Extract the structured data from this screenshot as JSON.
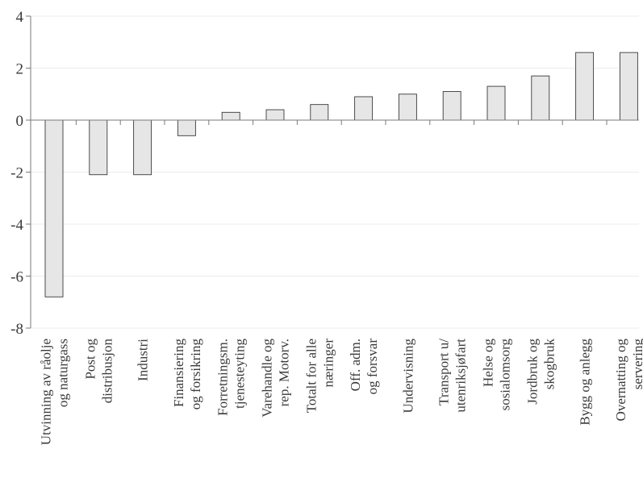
{
  "chart_data": {
    "type": "bar",
    "title": "",
    "xlabel": "",
    "ylabel": "",
    "ylim": [
      -8,
      4
    ],
    "yticks": [
      4,
      2,
      0,
      -2,
      -4,
      -6,
      -8
    ],
    "grid": true,
    "categories": [
      [
        "Utvinning av råolje",
        "og naturgass"
      ],
      [
        "Post og",
        "distribusjon"
      ],
      [
        "Industri"
      ],
      [
        "Finansiering",
        "og forsikring"
      ],
      [
        "Forretningsm.",
        "tjenesteyting"
      ],
      [
        "Varehandle og",
        "rep. Motorv."
      ],
      [
        "Totalt for alle",
        "næringer"
      ],
      [
        "Off. adm.",
        "og forsvar"
      ],
      [
        "Undervisning"
      ],
      [
        "Transport u/",
        "utenriksjøfart"
      ],
      [
        "Helse og",
        "sosialomsorg"
      ],
      [
        "Jordbruk og",
        "skogbruk"
      ],
      [
        "Bygg og anlegg"
      ],
      [
        "Overnatting og",
        "servering"
      ]
    ],
    "values": [
      -6.8,
      -2.1,
      -2.1,
      -0.6,
      0.3,
      0.4,
      0.6,
      0.9,
      1.0,
      1.1,
      1.3,
      1.7,
      2.6,
      2.6
    ],
    "colors": {
      "bar_fill": "#e6e6e6",
      "bar_stroke": "#3a3a3a",
      "axis": "#7a7a7a",
      "grid": "#ececec",
      "text": "#3a3a3a"
    }
  }
}
